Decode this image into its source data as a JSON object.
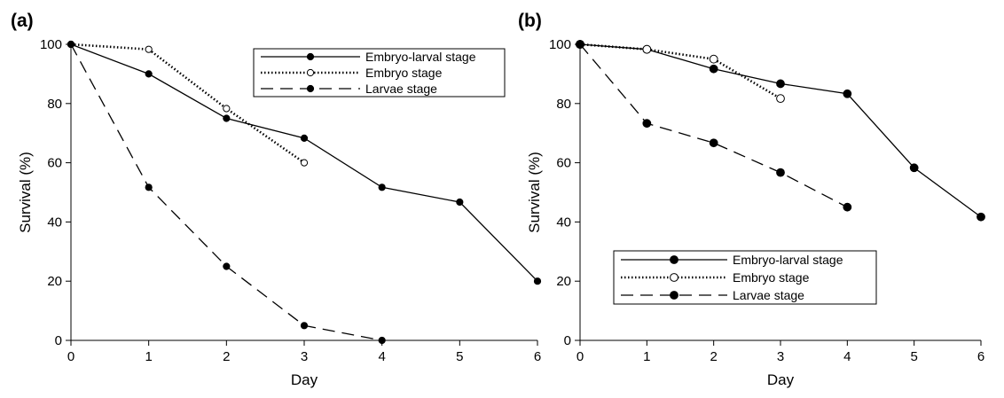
{
  "chart_data": [
    {
      "type": "line",
      "panel_label": "(a)",
      "xlabel": "Day",
      "ylabel": "Survival (%)",
      "xlim": [
        0,
        6
      ],
      "ylim": [
        0,
        100
      ],
      "xticks": [
        0,
        1,
        2,
        3,
        4,
        5,
        6
      ],
      "yticks": [
        0,
        20,
        40,
        60,
        80,
        100
      ],
      "grid": false,
      "legend_position": "top-right",
      "series": [
        {
          "name": "Embryo-larval stage",
          "line": "solid",
          "marker": "filled",
          "x": [
            0,
            1,
            2,
            3,
            4,
            5,
            6
          ],
          "y": [
            100,
            90,
            75,
            68.3,
            51.7,
            46.7,
            20
          ]
        },
        {
          "name": "Embryo stage",
          "line": "dotted",
          "marker": "open",
          "x": [
            0,
            1,
            2,
            3
          ],
          "y": [
            100,
            98.3,
            78.3,
            60
          ]
        },
        {
          "name": "Larvae stage",
          "line": "dashed",
          "marker": "filled",
          "x": [
            0,
            1,
            2,
            3,
            4
          ],
          "y": [
            100,
            51.7,
            25,
            5,
            0
          ]
        }
      ]
    },
    {
      "type": "line",
      "panel_label": "(b)",
      "xlabel": "Day",
      "ylabel": "Survival (%)",
      "xlim": [
        0,
        6
      ],
      "ylim": [
        0,
        100
      ],
      "xticks": [
        0,
        1,
        2,
        3,
        4,
        5,
        6
      ],
      "yticks": [
        0,
        20,
        40,
        60,
        80,
        100
      ],
      "grid": false,
      "legend_position": "bottom-left",
      "series": [
        {
          "name": "Embryo-larval stage",
          "line": "solid",
          "marker": "filled",
          "x": [
            0,
            1,
            2,
            3,
            4,
            5,
            6
          ],
          "y": [
            100,
            98.3,
            91.7,
            86.7,
            83.3,
            58.3,
            41.7
          ]
        },
        {
          "name": "Embryo stage",
          "line": "dotted",
          "marker": "open",
          "x": [
            0,
            1,
            2,
            3
          ],
          "y": [
            100,
            98.3,
            95,
            81.7
          ]
        },
        {
          "name": "Larvae stage",
          "line": "dashed",
          "marker": "filled",
          "x": [
            0,
            1,
            2,
            3,
            4
          ],
          "y": [
            100,
            73.3,
            66.7,
            56.7,
            45
          ]
        }
      ]
    }
  ]
}
